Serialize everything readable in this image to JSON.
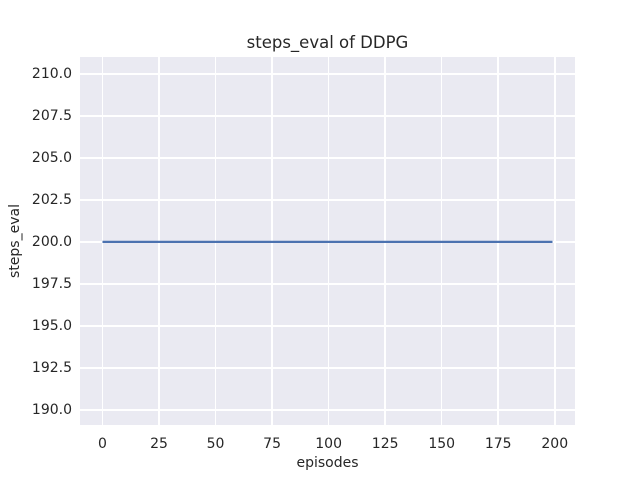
{
  "chart_data": {
    "type": "line",
    "title": "steps_eval of DDPG",
    "xlabel": "episodes",
    "ylabel": "steps_eval",
    "xlim": [
      -9.95,
      208.95
    ],
    "ylim": [
      189.1,
      211.0
    ],
    "xticks": [
      0,
      25,
      50,
      75,
      100,
      125,
      150,
      175,
      200
    ],
    "xtick_labels": [
      "0",
      "25",
      "50",
      "75",
      "100",
      "125",
      "150",
      "175",
      "200"
    ],
    "yticks": [
      190.0,
      192.5,
      195.0,
      197.5,
      200.0,
      202.5,
      205.0,
      207.5,
      210.0
    ],
    "ytick_labels": [
      "190.0",
      "192.5",
      "195.0",
      "197.5",
      "200.0",
      "202.5",
      "205.0",
      "207.5",
      "210.0"
    ],
    "grid": true,
    "legend": null,
    "series": [
      {
        "name": "steps_eval",
        "x": [
          0,
          199
        ],
        "values": [
          200,
          200
        ]
      }
    ],
    "style": {
      "axes_background": "#eaeaf2",
      "grid_color": "#ffffff",
      "line_color": "#4c72b0",
      "line_width": 2.2,
      "text_color": "#262626",
      "figure_background": "#ffffff"
    }
  }
}
